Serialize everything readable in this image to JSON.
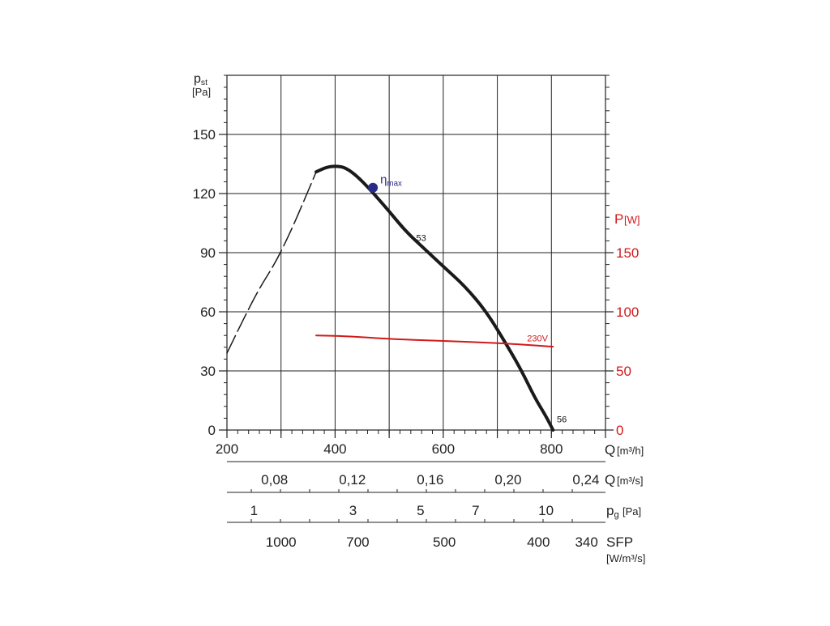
{
  "chart_data": {
    "type": "line",
    "y_axis_left": {
      "label_main": "p",
      "label_sub": "st",
      "unit": "[Pa]",
      "range": [
        0,
        180
      ],
      "ticks": [
        0,
        30,
        60,
        90,
        120,
        150
      ],
      "tick_labels": [
        "0",
        "30",
        "60",
        "90",
        "120",
        "150"
      ]
    },
    "y_axis_right": {
      "label_main": "P",
      "unit": "[W]",
      "range": [
        0,
        300
      ],
      "ticks": [
        0,
        50,
        100,
        150
      ],
      "tick_labels": [
        "0",
        "50",
        "100",
        "150"
      ],
      "color": "#d11a1a"
    },
    "x_axis": {
      "range": [
        200,
        900
      ],
      "ticks": [
        200,
        400,
        600,
        800
      ],
      "tick_labels": [
        "200",
        "400",
        "600",
        "800"
      ],
      "grid": [
        300,
        400,
        500,
        600,
        700,
        800,
        900
      ],
      "label": "Q",
      "unit": "[m³/h]"
    },
    "secondary_scales": [
      {
        "name": "flow_m3s",
        "label": "Q",
        "unit": "[m³/s]",
        "ticks": [
          {
            "x": 288,
            "label": "0,08"
          },
          {
            "x": 432,
            "label": "0,12"
          },
          {
            "x": 576,
            "label": "0,16"
          },
          {
            "x": 720,
            "label": "0,20"
          },
          {
            "x": 864,
            "label": "0,24"
          }
        ]
      },
      {
        "name": "pg",
        "label_main": "p",
        "label_sub": "g",
        "unit": "[Pa]",
        "ticks": [
          {
            "x": 250,
            "label": "1"
          },
          {
            "x": 433,
            "label": "3"
          },
          {
            "x": 558,
            "label": "5"
          },
          {
            "x": 660,
            "label": "7"
          },
          {
            "x": 790,
            "label": "10"
          }
        ]
      },
      {
        "name": "sfp",
        "label": "SFP",
        "unit": "[W/m³/s]",
        "ticks": [
          {
            "x": 300,
            "label": "1000"
          },
          {
            "x": 442,
            "label": "700"
          },
          {
            "x": 602,
            "label": "500"
          },
          {
            "x": 776,
            "label": "400"
          },
          {
            "x": 865,
            "label": "340"
          }
        ]
      }
    ],
    "series": [
      {
        "axis": "left",
        "style": "dashed",
        "x": [
          200,
          230,
          260,
          290,
          320,
          345,
          365
        ],
        "y": [
          39,
          56,
          72,
          85,
          102,
          118,
          131
        ]
      },
      {
        "axis": "left",
        "style": "solid",
        "x": [
          365,
          385,
          405,
          420,
          440,
          465,
          500,
          530,
          565,
          600,
          640,
          680,
          720,
          745,
          770,
          790,
          803
        ],
        "y": [
          131,
          133.5,
          134,
          133,
          129,
          122,
          111,
          101,
          92,
          83,
          73,
          60,
          42,
          30,
          16,
          7,
          0
        ],
        "labels": [
          {
            "x": 550,
            "y": 96,
            "text": "53"
          },
          {
            "x": 810,
            "y": 4,
            "text": "56"
          }
        ]
      },
      {
        "axis": "right",
        "style": "solid",
        "color": "#d11a1a",
        "x": [
          365,
          420,
          500,
          560,
          620,
          680,
          740,
          803
        ],
        "y": [
          80,
          79.5,
          77,
          76,
          75,
          74,
          72.5,
          70.5
        ],
        "labels": [
          {
            "x": 755,
            "y": 75,
            "text": "230V"
          }
        ]
      }
    ],
    "annotations": [
      {
        "type": "point",
        "x": 470,
        "y": 123,
        "label": "η",
        "label_sub": "max",
        "color": "#2a2a8a"
      }
    ],
    "grid": true
  }
}
